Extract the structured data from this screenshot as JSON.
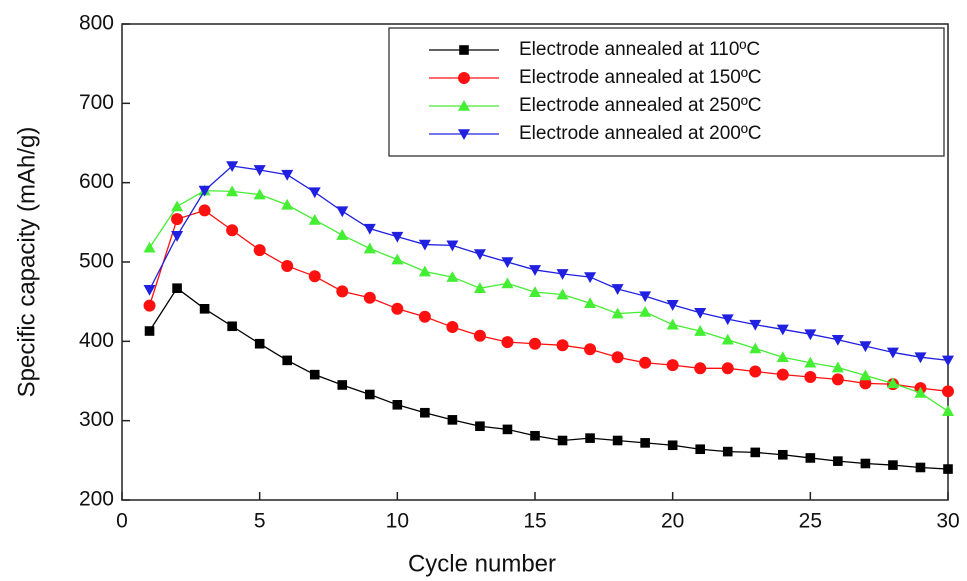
{
  "chart_data": {
    "type": "line",
    "xlabel": "Cycle number",
    "ylabel": "Specific capacity (mAh/g)",
    "x": [
      1,
      2,
      3,
      4,
      5,
      6,
      7,
      8,
      9,
      10,
      11,
      12,
      13,
      14,
      15,
      16,
      17,
      18,
      19,
      20,
      21,
      22,
      23,
      24,
      25,
      26,
      27,
      28,
      29,
      30
    ],
    "series": [
      {
        "name": "Electrode annealed  at 110ºC",
        "color": "#000000",
        "marker": "square",
        "values": [
          413,
          467,
          441,
          419,
          397,
          376,
          358,
          345,
          333,
          320,
          310,
          301,
          293,
          289,
          281,
          275,
          278,
          275,
          272,
          269,
          264,
          261,
          260,
          257,
          253,
          249,
          246,
          244,
          241,
          239
        ]
      },
      {
        "name": "Electrode annealed  at 150ºC",
        "color": "#ff1010",
        "marker": "circle",
        "values": [
          445,
          554,
          565,
          540,
          515,
          495,
          482,
          463,
          455,
          441,
          431,
          418,
          407,
          399,
          397,
          395,
          390,
          380,
          373,
          370,
          366,
          366,
          362,
          358,
          355,
          352,
          347,
          346,
          341,
          337
        ]
      },
      {
        "name": "Electrode annealed  at 250ºC",
        "color": "#44ee33",
        "marker": "triangle-up",
        "values": [
          518,
          570,
          590,
          589,
          585,
          572,
          553,
          534,
          517,
          503,
          488,
          481,
          467,
          473,
          462,
          459,
          448,
          435,
          437,
          421,
          413,
          402,
          391,
          380,
          373,
          367,
          357,
          347,
          335,
          312
        ]
      },
      {
        "name": "Electrode annealed  at 200ºC",
        "color": "#2020e0",
        "marker": "triangle-down",
        "values": [
          465,
          533,
          590,
          621,
          616,
          610,
          588,
          564,
          542,
          532,
          522,
          521,
          510,
          500,
          490,
          485,
          481,
          466,
          457,
          446,
          436,
          428,
          421,
          415,
          409,
          402,
          394,
          386,
          380,
          376
        ]
      }
    ],
    "xlim": [
      0,
      30
    ],
    "xticks": [
      0,
      5,
      10,
      15,
      20,
      25,
      30
    ],
    "ylim": [
      200,
      800
    ],
    "yticks": [
      200,
      300,
      400,
      500,
      600,
      700,
      800
    ],
    "legend": "upper right"
  }
}
